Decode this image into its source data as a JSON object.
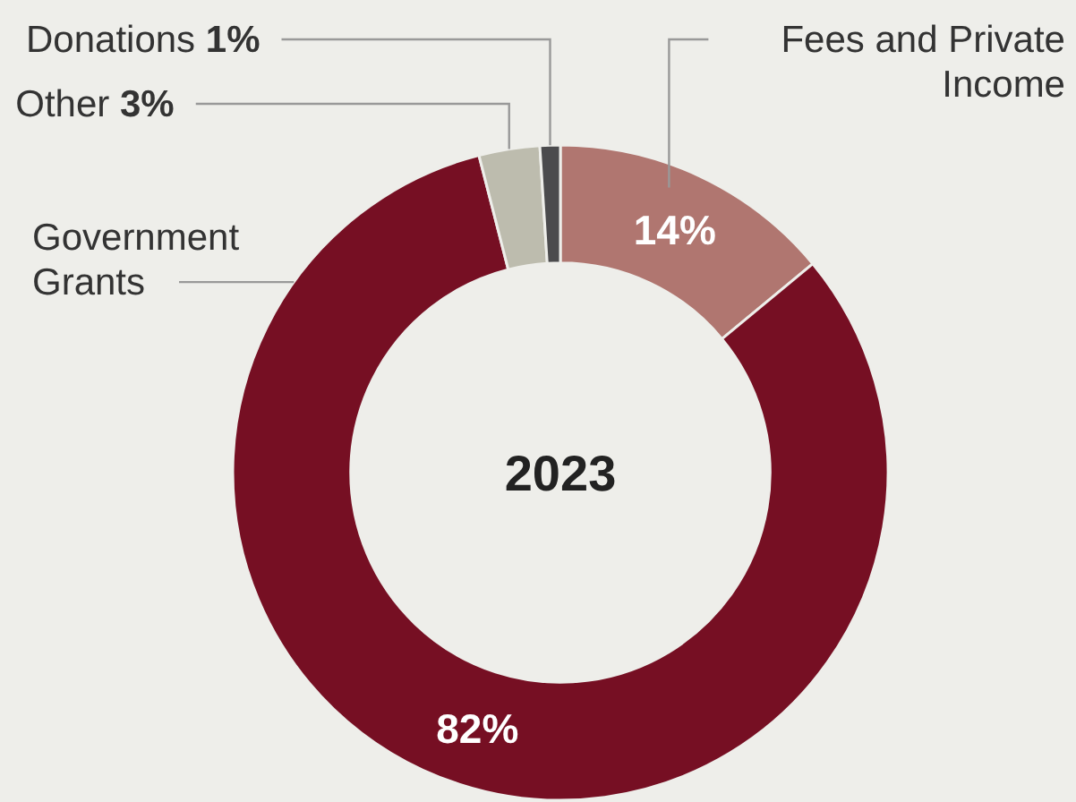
{
  "chart_data": {
    "type": "donut",
    "title": "2023",
    "categories": [
      "Fees and Private Income",
      "Government Grants",
      "Other",
      "Donations"
    ],
    "values": [
      14,
      82,
      3,
      1
    ],
    "colors": [
      "#b07670",
      "#760f23",
      "#bdbcae",
      "#4b4b4d"
    ],
    "value_labels": [
      "14%",
      "82%",
      "3%",
      "1%"
    ]
  }
}
